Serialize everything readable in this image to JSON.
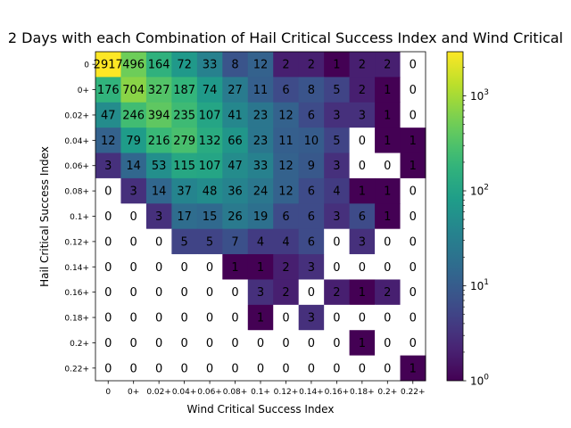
{
  "chart_data": {
    "type": "heatmap",
    "title": "2 Days with each Combination of Hail Critical Success Index and Wind Critical",
    "xlabel": "Wind Critical Success Index",
    "ylabel": "Hail Critical Success Index",
    "x_categories": [
      "0",
      "0+",
      "0.02+",
      "0.04+",
      "0.06+",
      "0.08+",
      "0.1+",
      "0.12+",
      "0.14+",
      "0.16+",
      "0.18+",
      "0.2+",
      "0.22+"
    ],
    "y_categories": [
      "0",
      "0+",
      "0.02+",
      "0.04+",
      "0.06+",
      "0.08+",
      "0.1+",
      "0.12+",
      "0.14+",
      "0.16+",
      "0.18+",
      "0.2+",
      "0.22+"
    ],
    "values": [
      [
        2917,
        496,
        164,
        72,
        33,
        8,
        12,
        2,
        2,
        1,
        2,
        2,
        0
      ],
      [
        176,
        704,
        327,
        187,
        74,
        27,
        11,
        6,
        8,
        5,
        2,
        1,
        0
      ],
      [
        47,
        246,
        394,
        235,
        107,
        41,
        23,
        12,
        6,
        3,
        3,
        1,
        0
      ],
      [
        12,
        79,
        216,
        279,
        132,
        66,
        23,
        11,
        10,
        5,
        0,
        1,
        1
      ],
      [
        3,
        14,
        53,
        115,
        107,
        47,
        33,
        12,
        9,
        3,
        0,
        0,
        1
      ],
      [
        0,
        3,
        14,
        37,
        48,
        36,
        24,
        12,
        6,
        4,
        1,
        1,
        0
      ],
      [
        0,
        0,
        3,
        17,
        15,
        26,
        19,
        6,
        6,
        3,
        6,
        1,
        0
      ],
      [
        0,
        0,
        0,
        5,
        5,
        7,
        4,
        4,
        6,
        0,
        3,
        0,
        0
      ],
      [
        0,
        0,
        0,
        0,
        0,
        1,
        1,
        2,
        3,
        0,
        0,
        0,
        0
      ],
      [
        0,
        0,
        0,
        0,
        0,
        0,
        3,
        2,
        0,
        2,
        1,
        2,
        0
      ],
      [
        0,
        0,
        0,
        0,
        0,
        0,
        1,
        0,
        3,
        0,
        0,
        0,
        0
      ],
      [
        0,
        0,
        0,
        0,
        0,
        0,
        0,
        0,
        0,
        0,
        1,
        0,
        0
      ],
      [
        0,
        0,
        0,
        0,
        0,
        0,
        0,
        0,
        0,
        0,
        0,
        0,
        1
      ]
    ],
    "color_scale": "log",
    "colormap": "viridis",
    "zero_color": "#ffffff",
    "colorbar": {
      "range": [
        1,
        2917
      ],
      "ticks": [
        {
          "value": 1,
          "base": "10",
          "exp": "0"
        },
        {
          "value": 10,
          "base": "10",
          "exp": "1"
        },
        {
          "value": 100,
          "base": "10",
          "exp": "2"
        },
        {
          "value": 1000,
          "base": "10",
          "exp": "3"
        }
      ]
    },
    "grid": false
  }
}
